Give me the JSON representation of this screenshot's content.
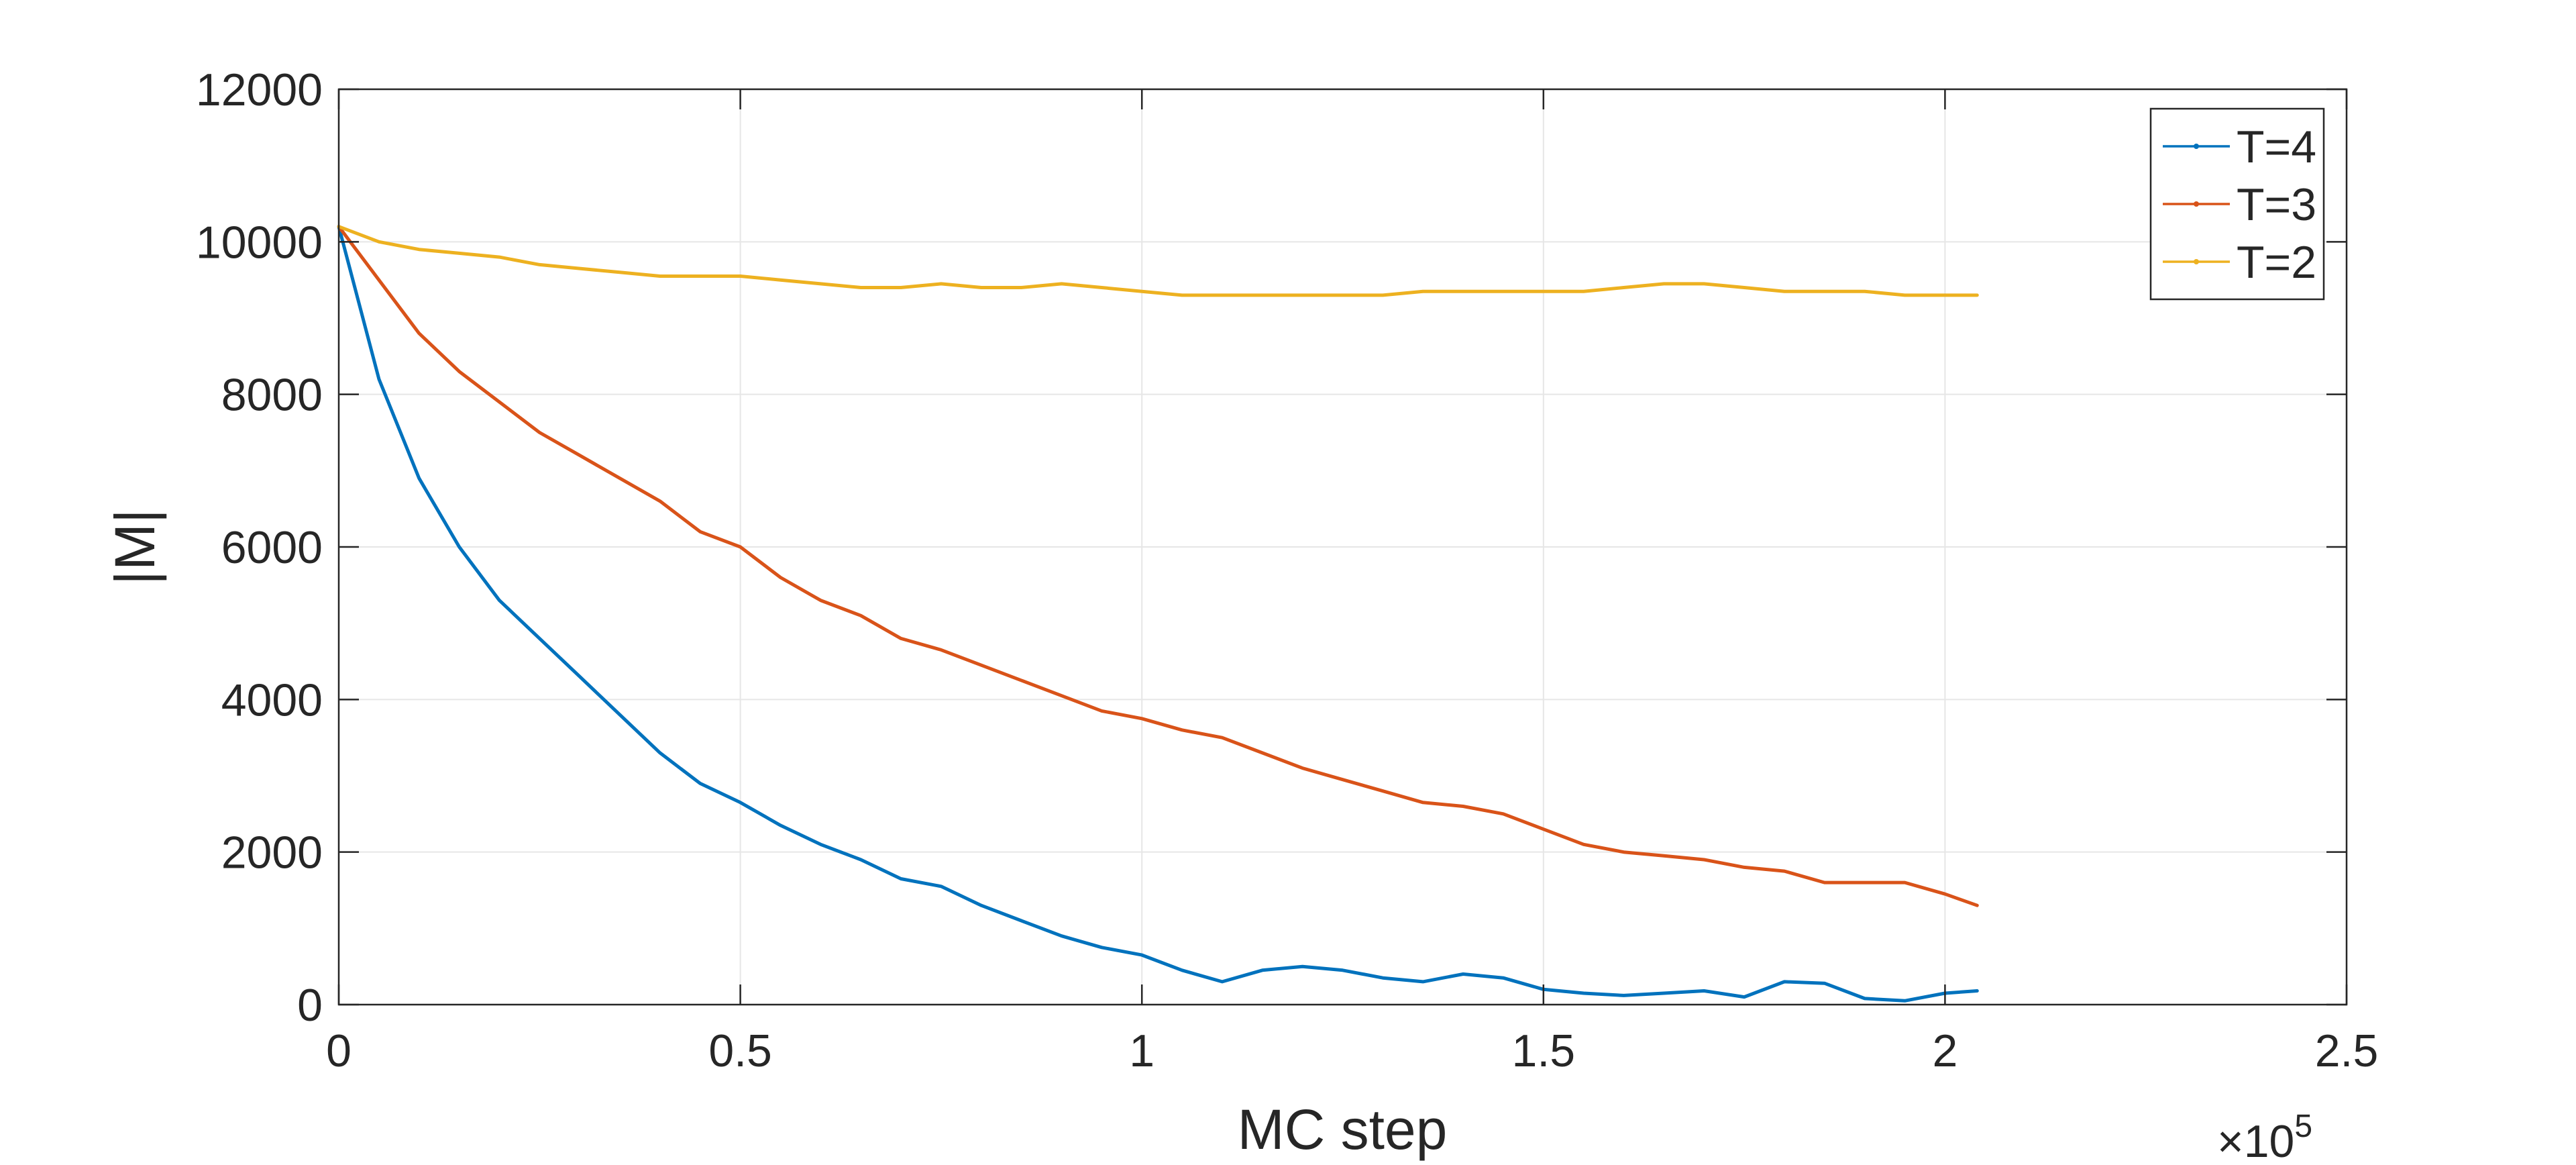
{
  "chart_data": {
    "type": "line",
    "title": "",
    "xlabel": "MC step",
    "ylabel": "|M|",
    "x_exponent_label": "×10",
    "x_exponent": "5",
    "xlim": [
      0,
      2.5
    ],
    "ylim": [
      0,
      12000
    ],
    "x_ticks": [
      "0",
      "0.5",
      "1",
      "1.5",
      "2",
      "2.5"
    ],
    "x_tick_values": [
      0,
      0.5,
      1,
      1.5,
      2,
      2.5
    ],
    "y_ticks": [
      "0",
      "2000",
      "4000",
      "6000",
      "8000",
      "10000",
      "12000"
    ],
    "y_tick_values": [
      0,
      2000,
      4000,
      6000,
      8000,
      10000,
      12000
    ],
    "grid": true,
    "legend_position": "top-right",
    "series": [
      {
        "name": "T=4",
        "color": "#0072BD",
        "x": [
          0,
          0.05,
          0.1,
          0.15,
          0.2,
          0.25,
          0.3,
          0.35,
          0.4,
          0.45,
          0.5,
          0.55,
          0.6,
          0.65,
          0.7,
          0.75,
          0.8,
          0.85,
          0.9,
          0.95,
          1.0,
          1.05,
          1.1,
          1.15,
          1.2,
          1.25,
          1.3,
          1.35,
          1.4,
          1.45,
          1.5,
          1.55,
          1.6,
          1.65,
          1.7,
          1.75,
          1.8,
          1.85,
          1.9,
          1.95,
          2.0,
          2.04
        ],
        "y": [
          10200,
          8200,
          6900,
          6000,
          5300,
          4800,
          4300,
          3800,
          3300,
          2900,
          2650,
          2350,
          2100,
          1900,
          1650,
          1550,
          1300,
          1100,
          900,
          750,
          650,
          450,
          300,
          450,
          500,
          450,
          350,
          300,
          400,
          350,
          200,
          150,
          120,
          150,
          180,
          100,
          300,
          280,
          80,
          50,
          150,
          180
        ]
      },
      {
        "name": "T=3",
        "color": "#D95319",
        "x": [
          0,
          0.05,
          0.1,
          0.15,
          0.2,
          0.25,
          0.3,
          0.35,
          0.4,
          0.45,
          0.5,
          0.55,
          0.6,
          0.65,
          0.7,
          0.75,
          0.8,
          0.85,
          0.9,
          0.95,
          1.0,
          1.05,
          1.1,
          1.15,
          1.2,
          1.25,
          1.3,
          1.35,
          1.4,
          1.45,
          1.5,
          1.55,
          1.6,
          1.65,
          1.7,
          1.75,
          1.8,
          1.85,
          1.9,
          1.95,
          2.0,
          2.04
        ],
        "y": [
          10200,
          9500,
          8800,
          8300,
          7900,
          7500,
          7200,
          6900,
          6600,
          6200,
          6000,
          5600,
          5300,
          5100,
          4800,
          4650,
          4450,
          4250,
          4050,
          3850,
          3750,
          3600,
          3500,
          3300,
          3100,
          2950,
          2800,
          2650,
          2600,
          2500,
          2300,
          2100,
          2000,
          1950,
          1900,
          1800,
          1750,
          1600,
          1600,
          1600,
          1450,
          1300
        ]
      },
      {
        "name": "T=2",
        "color": "#EDB120",
        "x": [
          0,
          0.05,
          0.1,
          0.15,
          0.2,
          0.25,
          0.3,
          0.35,
          0.4,
          0.45,
          0.5,
          0.55,
          0.6,
          0.65,
          0.7,
          0.75,
          0.8,
          0.85,
          0.9,
          0.95,
          1.0,
          1.05,
          1.1,
          1.15,
          1.2,
          1.25,
          1.3,
          1.35,
          1.4,
          1.45,
          1.5,
          1.55,
          1.6,
          1.65,
          1.7,
          1.75,
          1.8,
          1.85,
          1.9,
          1.95,
          2.0,
          2.04
        ],
        "y": [
          10200,
          10000,
          9900,
          9850,
          9800,
          9700,
          9650,
          9600,
          9550,
          9550,
          9550,
          9500,
          9450,
          9400,
          9400,
          9450,
          9400,
          9400,
          9450,
          9400,
          9350,
          9300,
          9300,
          9300,
          9300,
          9300,
          9300,
          9350,
          9350,
          9350,
          9350,
          9350,
          9400,
          9450,
          9450,
          9400,
          9350,
          9350,
          9350,
          9300,
          9300,
          9300
        ]
      }
    ]
  }
}
